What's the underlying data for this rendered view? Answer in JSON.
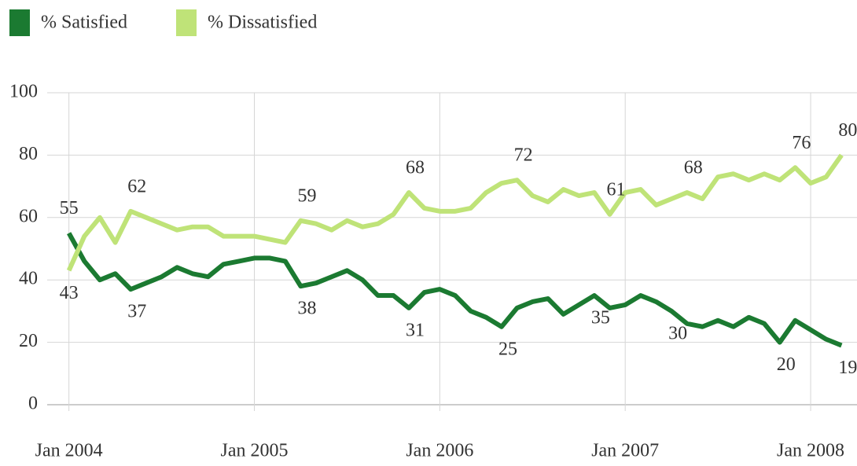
{
  "chart_data": {
    "type": "line",
    "x": [
      "2004-01",
      "2004-02",
      "2004-03",
      "2004-04",
      "2004-05",
      "2004-06",
      "2004-07",
      "2004-08",
      "2004-09",
      "2004-10",
      "2004-11",
      "2004-12",
      "2005-01",
      "2005-02",
      "2005-03",
      "2005-04",
      "2005-05",
      "2005-06",
      "2005-07",
      "2005-08",
      "2005-09",
      "2005-10",
      "2005-11",
      "2005-12",
      "2006-01",
      "2006-02",
      "2006-03",
      "2006-04",
      "2006-05",
      "2006-06",
      "2006-07",
      "2006-08",
      "2006-09",
      "2006-10",
      "2006-11",
      "2006-12",
      "2007-01",
      "2007-02",
      "2007-03",
      "2007-04",
      "2007-05",
      "2007-06",
      "2007-07",
      "2007-08",
      "2007-09",
      "2007-10",
      "2007-11",
      "2007-12",
      "2008-01",
      "2008-02",
      "2008-03"
    ],
    "series": [
      {
        "name": "% Satisfied",
        "color": "#1b7a31",
        "values": [
          55,
          46,
          40,
          42,
          37,
          39,
          41,
          44,
          42,
          41,
          45,
          46,
          47,
          47,
          46,
          38,
          39,
          41,
          43,
          40,
          35,
          35,
          31,
          36,
          37,
          35,
          30,
          28,
          25,
          31,
          33,
          34,
          29,
          32,
          35,
          31,
          32,
          35,
          33,
          30,
          26,
          25,
          27,
          25,
          28,
          26,
          20,
          27,
          24,
          21,
          19
        ],
        "labels_at": [
          0,
          4,
          15,
          22,
          28,
          34,
          39,
          46,
          50
        ]
      },
      {
        "name": "% Dissatisfied",
        "color": "#bfe378",
        "values": [
          43,
          54,
          60,
          52,
          62,
          60,
          58,
          56,
          57,
          57,
          54,
          54,
          54,
          53,
          52,
          59,
          58,
          56,
          59,
          57,
          58,
          61,
          68,
          63,
          62,
          62,
          63,
          68,
          71,
          72,
          67,
          65,
          69,
          67,
          68,
          61,
          68,
          69,
          64,
          66,
          68,
          66,
          73,
          74,
          72,
          74,
          72,
          76,
          71,
          73,
          80
        ],
        "labels_at": [
          0,
          4,
          15,
          22,
          29,
          35,
          40,
          47,
          50
        ]
      }
    ],
    "xlim": [
      "2003-12",
      "2008-04"
    ],
    "xticks": [
      {
        "value": "2004-01",
        "label": "Jan 2004"
      },
      {
        "value": "2005-01",
        "label": "Jan 2005"
      },
      {
        "value": "2006-01",
        "label": "Jan 2006"
      },
      {
        "value": "2007-01",
        "label": "Jan 2007"
      },
      {
        "value": "2008-01",
        "label": "Jan 2008"
      }
    ],
    "ylim": [
      0,
      100
    ],
    "yticks": [
      0,
      20,
      40,
      60,
      80,
      100
    ],
    "grid": true
  }
}
